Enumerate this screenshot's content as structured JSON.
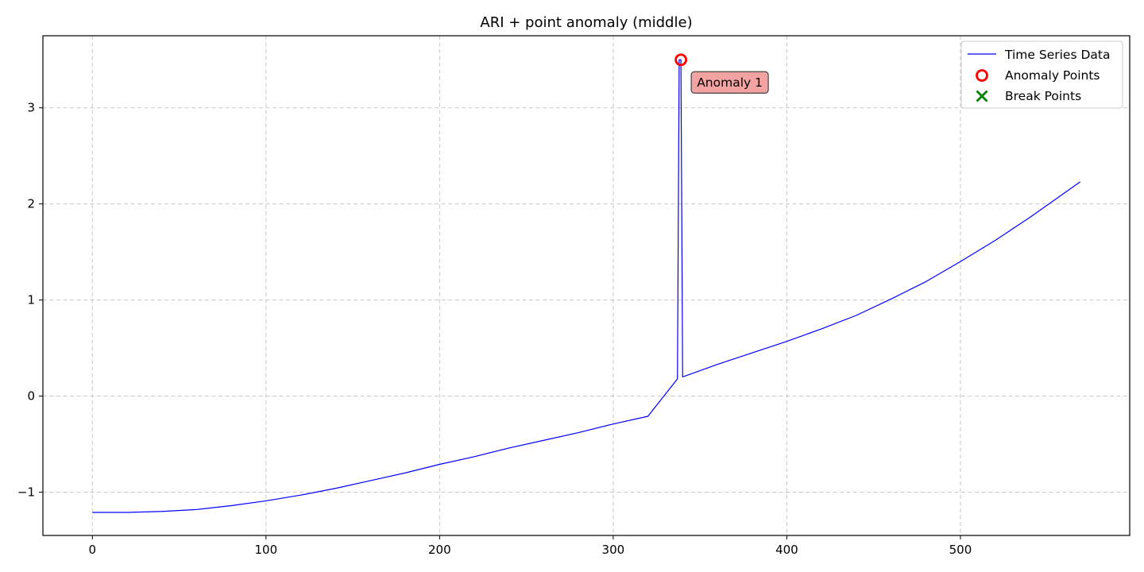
{
  "chart_data": {
    "type": "line",
    "title": "ARI + point anomaly (middle)",
    "xlabel": "",
    "ylabel": "",
    "xlim": [
      -28.5,
      597.5
    ],
    "ylim": [
      -1.45,
      3.75
    ],
    "xticks": [
      0,
      100,
      200,
      300,
      400,
      500
    ],
    "yticks": [
      -1,
      0,
      1,
      2,
      3
    ],
    "grid": true,
    "legend_position": "top-right",
    "legend": [
      {
        "label": "Time Series Data",
        "kind": "line",
        "color": "#0000ff"
      },
      {
        "label": "Anomaly Points",
        "kind": "circle",
        "color": "#ff0000"
      },
      {
        "label": "Break Points",
        "kind": "x",
        "color": "#008000"
      }
    ],
    "series": [
      {
        "name": "Time Series Data",
        "color": "#0000ff",
        "x": [
          0,
          20,
          40,
          60,
          80,
          100,
          120,
          140,
          160,
          180,
          200,
          220,
          240,
          260,
          280,
          300,
          320,
          337,
          338,
          339,
          340,
          360,
          380,
          400,
          420,
          440,
          460,
          480,
          500,
          520,
          540,
          569
        ],
        "y": [
          -1.21,
          -1.21,
          -1.2,
          -1.18,
          -1.14,
          -1.09,
          -1.03,
          -0.96,
          -0.88,
          -0.8,
          -0.71,
          -0.63,
          -0.54,
          -0.46,
          -0.38,
          -0.29,
          -0.21,
          0.18,
          3.5,
          3.5,
          0.2,
          0.33,
          0.45,
          0.57,
          0.7,
          0.84,
          1.01,
          1.19,
          1.4,
          1.62,
          1.86,
          2.23
        ]
      }
    ],
    "anomaly_points": [
      {
        "x": 339,
        "y": 3.5,
        "label": "Anomaly 1"
      }
    ],
    "break_points": []
  }
}
